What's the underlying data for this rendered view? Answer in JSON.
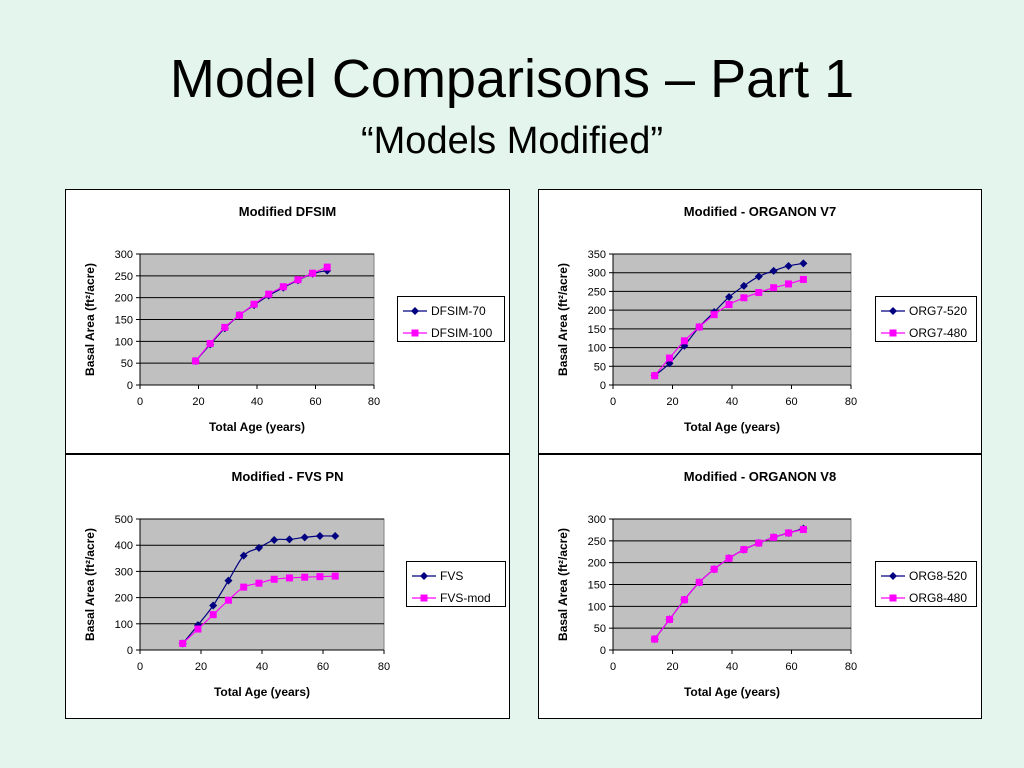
{
  "slide": {
    "title": "Model Comparisons – Part 1",
    "subtitle": "“Models Modified”"
  },
  "chart_data": [
    {
      "type": "line",
      "title": "Modified DFSIM",
      "xlabel": "Total Age (years)",
      "ylabel": "Basal Area (ft²/acre)",
      "xlim": [
        0,
        80
      ],
      "ylim": [
        0,
        300
      ],
      "xticks": [
        0,
        20,
        40,
        60,
        80
      ],
      "yticks": [
        0,
        50,
        100,
        150,
        200,
        250,
        300
      ],
      "grid": true,
      "legend": "right",
      "series": [
        {
          "name": "DFSIM-70",
          "color": "#000080",
          "marker": "diamond",
          "x": [
            19,
            24,
            29,
            34,
            39,
            44,
            49,
            54,
            59,
            64
          ],
          "y": [
            55,
            93,
            130,
            160,
            183,
            205,
            223,
            240,
            255,
            262
          ]
        },
        {
          "name": "DFSIM-100",
          "color": "#ff00ff",
          "marker": "square",
          "x": [
            19,
            24,
            29,
            34,
            39,
            44,
            49,
            54,
            59,
            64
          ],
          "y": [
            55,
            95,
            132,
            160,
            185,
            208,
            225,
            241,
            256,
            270
          ]
        }
      ]
    },
    {
      "type": "line",
      "title": "Modified - ORGANON V7",
      "xlabel": "Total Age (years)",
      "ylabel": "Basal Area (ft²/acre)",
      "xlim": [
        0,
        80
      ],
      "ylim": [
        0,
        350
      ],
      "xticks": [
        0,
        20,
        40,
        60,
        80
      ],
      "yticks": [
        0,
        50,
        100,
        150,
        200,
        250,
        300,
        350
      ],
      "grid": true,
      "legend": "right",
      "series": [
        {
          "name": "ORG7-520",
          "color": "#000080",
          "marker": "diamond",
          "x": [
            14,
            19,
            24,
            29,
            34,
            39,
            44,
            49,
            54,
            59,
            64
          ],
          "y": [
            25,
            58,
            105,
            155,
            195,
            235,
            265,
            290,
            305,
            318,
            325
          ]
        },
        {
          "name": "ORG7-480",
          "color": "#ff00ff",
          "marker": "square",
          "x": [
            14,
            19,
            24,
            29,
            34,
            39,
            44,
            49,
            54,
            59,
            64
          ],
          "y": [
            25,
            72,
            118,
            155,
            188,
            215,
            233,
            247,
            260,
            270,
            282
          ]
        }
      ]
    },
    {
      "type": "line",
      "title": "Modified - FVS PN",
      "xlabel": "Total Age (years)",
      "ylabel": "Basal Area (ft²/acre)",
      "xlim": [
        0,
        80
      ],
      "ylim": [
        0,
        500
      ],
      "xticks": [
        0,
        20,
        40,
        60,
        80
      ],
      "yticks": [
        0,
        100,
        200,
        300,
        400,
        500
      ],
      "grid": true,
      "legend": "right",
      "series": [
        {
          "name": "FVS",
          "color": "#000080",
          "marker": "diamond",
          "x": [
            14,
            19,
            24,
            29,
            34,
            39,
            44,
            49,
            54,
            59,
            64
          ],
          "y": [
            25,
            95,
            170,
            265,
            360,
            390,
            420,
            422,
            430,
            435,
            435
          ]
        },
        {
          "name": "FVS-mod",
          "color": "#ff00ff",
          "marker": "square",
          "x": [
            14,
            19,
            24,
            29,
            34,
            39,
            44,
            49,
            54,
            59,
            64
          ],
          "y": [
            25,
            80,
            135,
            190,
            240,
            255,
            270,
            275,
            278,
            280,
            282
          ]
        }
      ]
    },
    {
      "type": "line",
      "title": "Modified - ORGANON V8",
      "xlabel": "Total Age (years)",
      "ylabel": "Basal Area (ft²/acre)",
      "xlim": [
        0,
        80
      ],
      "ylim": [
        0,
        300
      ],
      "xticks": [
        0,
        20,
        40,
        60,
        80
      ],
      "yticks": [
        0,
        50,
        100,
        150,
        200,
        250,
        300
      ],
      "grid": true,
      "legend": "right",
      "series": [
        {
          "name": "ORG8-520",
          "color": "#000080",
          "marker": "diamond",
          "x": [
            14,
            19,
            24,
            29,
            34,
            39,
            44,
            49,
            54,
            59,
            64
          ],
          "y": [
            25,
            70,
            115,
            155,
            185,
            210,
            230,
            245,
            258,
            268,
            278
          ]
        },
        {
          "name": "ORG8-480",
          "color": "#ff00ff",
          "marker": "square",
          "x": [
            14,
            19,
            24,
            29,
            34,
            39,
            44,
            49,
            54,
            59,
            64
          ],
          "y": [
            25,
            70,
            115,
            155,
            185,
            210,
            230,
            245,
            258,
            268,
            276
          ]
        }
      ]
    }
  ]
}
